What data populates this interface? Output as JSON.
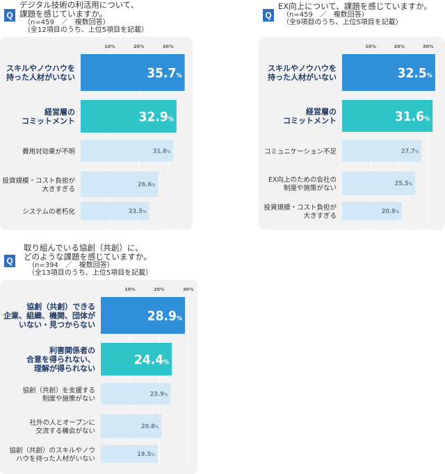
{
  "charts": [
    {
      "question": [
        "デジタル技術の利活用について、",
        "課題を感じていますか。"
      ],
      "notes": [
        "（n=459　／　複数回答）",
        "（全12項目のうち、上位5項目を記載）"
      ],
      "q_label": "Q"
    },
    {
      "question": [
        "EX向上について、課題を感じていますか。"
      ],
      "notes": [
        "（n=459　／　複数回答）",
        "（全9項目のうち、上位5項目を記載）"
      ],
      "q_label": "Q"
    },
    {
      "question": [
        "取り組んでいる協創（共創）に、",
        "どのような課題を感じていますか。"
      ],
      "notes": [
        "（n=394　／　複数回答）",
        "（全13項目のうち、上位5項目を記載）"
      ],
      "q_label": "Q"
    }
  ],
  "chart_data": [
    {
      "type": "bar",
      "orientation": "horizontal",
      "categories": [
        [
          "スキルやノウハウを",
          "持った人材がいない"
        ],
        [
          "経営層の",
          "コミットメント"
        ],
        [
          "費用対効果が不明"
        ],
        [
          "投資規模・コスト負担が",
          "大きすぎる"
        ],
        [
          "システムの老朽化"
        ]
      ],
      "values": [
        35.7,
        32.9,
        31.8,
        26.6,
        23.5
      ],
      "value_labels": [
        "35.7",
        "32.9",
        "31.8",
        "26.6",
        "23.5"
      ],
      "unit": "%",
      "xlim": [
        0,
        40
      ],
      "ticks": [
        "10%",
        "20%",
        "30%"
      ],
      "colors": [
        "#2f8fd8",
        "#2fc4c8",
        "#d3e8f7",
        "#d3e8f7",
        "#d3e8f7"
      ]
    },
    {
      "type": "bar",
      "orientation": "horizontal",
      "categories": [
        [
          "スキルやノウハウを",
          "持った人材がいない"
        ],
        [
          "経営層の",
          "コミットメント"
        ],
        [
          "コミュニケーション不足"
        ],
        [
          "EX向上のための会社の",
          "制度や施策がない"
        ],
        [
          "投資規模・コスト負担が",
          "大きすぎる"
        ]
      ],
      "values": [
        32.5,
        31.6,
        27.7,
        25.5,
        20.9
      ],
      "value_labels": [
        "32.5",
        "31.6",
        "27.7",
        "25.5",
        "20.9"
      ],
      "unit": "%",
      "xlim": [
        0,
        33
      ],
      "ticks": [
        "10%",
        "20%",
        "30%"
      ],
      "colors": [
        "#2f8fd8",
        "#2fc4c8",
        "#d3e8f7",
        "#d3e8f7",
        "#d3e8f7"
      ]
    },
    {
      "type": "bar",
      "orientation": "horizontal",
      "categories": [
        [
          "協創（共創）できる",
          "企業、組織、機関、団体が",
          "いない・見つからない"
        ],
        [
          "利害関係者の",
          "合意を得られない、",
          "理解が得られない"
        ],
        [
          "協創（共創）を支援する",
          "制度や施策がない"
        ],
        [
          "社外の人とオープンに",
          "交流する機会がない"
        ],
        [
          "協創（共創）のスキルやノウ",
          "ハウを持った人材がいない"
        ]
      ],
      "values": [
        28.9,
        24.4,
        23.9,
        20.8,
        19.5
      ],
      "value_labels": [
        "28.9",
        "24.4",
        "23.9",
        "20.8",
        "19.5"
      ],
      "unit": "%",
      "xlim": [
        0,
        31
      ],
      "ticks": [
        "10%",
        "20%",
        "30%"
      ],
      "colors": [
        "#2f8fd8",
        "#2fc4c8",
        "#d3e8f7",
        "#d3e8f7",
        "#d3e8f7"
      ]
    }
  ]
}
